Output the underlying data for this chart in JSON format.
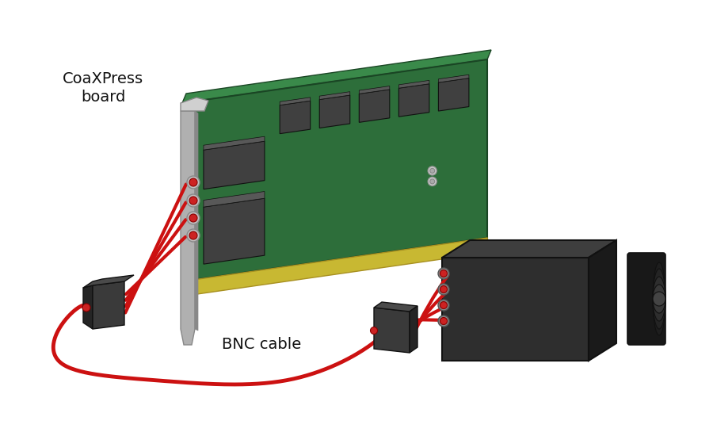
{
  "background_color": "#ffffff",
  "label_board": "CoaXPress\nboard",
  "label_cable": "BNC cable",
  "label_fontsize": 13,
  "cable_color": "#cc1111",
  "cable_lw": 3.0,
  "board_green_face": "#2d6e3a",
  "board_green_top": "#3a8a4a",
  "board_green_edge": "#1a4524",
  "board_gold": "#c8b832",
  "board_gold_dark": "#a89020",
  "chip_face": "#404040",
  "chip_top": "#585858",
  "chip_side": "#303030",
  "bracket_face": "#b0b0b0",
  "bracket_top": "#d0d0d0",
  "bracket_edge": "#888888",
  "conn_face": "#3a3a3a",
  "conn_top": "#4a4a4a",
  "conn_side": "#252525",
  "cam_face": "#2e2e2e",
  "cam_top": "#3e3e3e",
  "cam_side": "#1a1a1a",
  "lens_outer": "#181818",
  "lens_ring1": "#252525",
  "lens_ring2": "#303030",
  "lens_ring3": "#3a3a3a",
  "port_red": "#cc2222",
  "port_ring": "#888888",
  "port_red2": "#cc2222",
  "bolt_face": "#cccccc",
  "bolt_dark": "#999999"
}
